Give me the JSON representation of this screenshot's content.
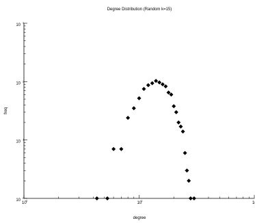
{
  "chart_data": {
    "type": "scatter",
    "title": "Degree Distribution (Random k=15)",
    "xlabel": "degree",
    "ylabel": "freq",
    "xscale": "log",
    "yscale": "log",
    "xlim_exp": [
      0,
      2
    ],
    "ylim_exp": [
      0,
      3
    ],
    "x_ticks": [
      {
        "base": "10",
        "exp": "0",
        "e": 0
      },
      {
        "base": "10",
        "exp": "1",
        "e": 1
      },
      {
        "base": "10",
        "exp": "2",
        "e": 2
      }
    ],
    "y_ticks": [
      {
        "base": "10",
        "exp": "0",
        "e": 0
      },
      {
        "base": "10",
        "exp": "1",
        "e": 1
      },
      {
        "base": "10",
        "exp": "2",
        "e": 2
      },
      {
        "base": "10",
        "exp": "3",
        "e": 3
      }
    ],
    "points": [
      {
        "x": 4.3,
        "y": 1
      },
      {
        "x": 5.3,
        "y": 1
      },
      {
        "x": 6,
        "y": 7
      },
      {
        "x": 7,
        "y": 7
      },
      {
        "x": 8,
        "y": 24
      },
      {
        "x": 9,
        "y": 35
      },
      {
        "x": 10,
        "y": 52
      },
      {
        "x": 11,
        "y": 75
      },
      {
        "x": 12,
        "y": 87
      },
      {
        "x": 13,
        "y": 94
      },
      {
        "x": 14,
        "y": 103
      },
      {
        "x": 15,
        "y": 97
      },
      {
        "x": 16,
        "y": 90
      },
      {
        "x": 17,
        "y": 83
      },
      {
        "x": 18,
        "y": 65
      },
      {
        "x": 19,
        "y": 60
      },
      {
        "x": 20,
        "y": 38
      },
      {
        "x": 21,
        "y": 30
      },
      {
        "x": 22,
        "y": 20
      },
      {
        "x": 23,
        "y": 17
      },
      {
        "x": 24,
        "y": 14
      },
      {
        "x": 25,
        "y": 6
      },
      {
        "x": 26,
        "y": 3
      },
      {
        "x": 27,
        "y": 2
      },
      {
        "x": 28,
        "y": 1
      },
      {
        "x": 30,
        "y": 1
      }
    ]
  }
}
